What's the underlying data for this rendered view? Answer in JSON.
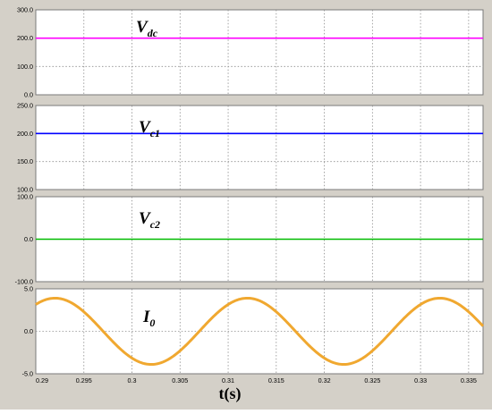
{
  "chart_data": [
    {
      "type": "line",
      "name_main": "V",
      "name_sub": "dc",
      "yticks": [
        "0.0",
        "100.0",
        "200.0",
        "300.0"
      ],
      "ylim": [
        0,
        300
      ],
      "x": [
        0.29,
        0.336
      ],
      "series": [
        {
          "values": [
            200,
            200
          ]
        }
      ],
      "color": "#ff00ff"
    },
    {
      "type": "line",
      "name_main": "V",
      "name_sub": "c1",
      "yticks": [
        "100.0",
        "150.0",
        "200.0",
        "250.0"
      ],
      "ylim": [
        100,
        250
      ],
      "x": [
        0.29,
        0.336
      ],
      "series": [
        {
          "values": [
            200,
            200
          ]
        }
      ],
      "color": "#0000ff"
    },
    {
      "type": "line",
      "name_main": "V",
      "name_sub": "c2",
      "yticks": [
        "-100.0",
        "0.0",
        "100.0"
      ],
      "ylim": [
        -100,
        100
      ],
      "x": [
        0.29,
        0.336
      ],
      "series": [
        {
          "values": [
            0,
            0
          ]
        }
      ],
      "color": "#00bb00"
    },
    {
      "type": "line",
      "name_main": "I",
      "name_sub": "0",
      "yticks": [
        "-5.0",
        "0.0",
        "5.0"
      ],
      "ylim": [
        -5,
        5
      ],
      "wave": {
        "amplitude": 3.9,
        "frequency_hz": 50,
        "peak_time": 0.292
      },
      "color": "#f0a830"
    }
  ],
  "xticks": [
    "0.29",
    "0.295",
    "0.3",
    "0.305",
    "0.31",
    "0.315",
    "0.32",
    "0.325",
    "0.33",
    "0.335"
  ],
  "xlim": [
    0.29,
    0.3365
  ],
  "xlabel": "t(s)"
}
